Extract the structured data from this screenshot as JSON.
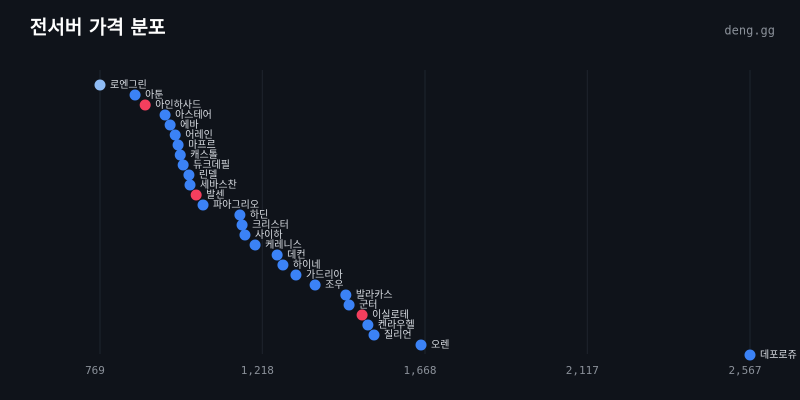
{
  "chart_data": {
    "type": "scatter",
    "title": "전서버 가격 분포",
    "brand": "deng.gg",
    "categories": [
      "로엔그린",
      "아툰",
      "아인하사드",
      "아스테어",
      "에바",
      "어레인",
      "마프르",
      "캐스톨",
      "듀크데필",
      "린델",
      "세바스찬",
      "발센",
      "파아그리오",
      "하딘",
      "크리스터",
      "사이하",
      "케레니스",
      "데컨",
      "하이네",
      "가드리아",
      "조우",
      "발라카스",
      "군터",
      "이실로테",
      "켄라우헬",
      "질리언",
      "오렌",
      "데포로쥬"
    ],
    "x": [
      769,
      866,
      894,
      949,
      963,
      977,
      985,
      991,
      999,
      1015,
      1018,
      1035,
      1054,
      1156,
      1162,
      1170,
      1198,
      1259,
      1275,
      1311,
      1364,
      1449,
      1458,
      1494,
      1510,
      1527,
      1657,
      2567
    ],
    "colors": [
      "#8fbcf5",
      "#3b82f6",
      "#f43f5e",
      "#3b82f6",
      "#3b82f6",
      "#3b82f6",
      "#3b82f6",
      "#3b82f6",
      "#3b82f6",
      "#3b82f6",
      "#3b82f6",
      "#f43f5e",
      "#3b82f6",
      "#3b82f6",
      "#3b82f6",
      "#3b82f6",
      "#3b82f6",
      "#3b82f6",
      "#3b82f6",
      "#3b82f6",
      "#3b82f6",
      "#3b82f6",
      "#3b82f6",
      "#f43f5e",
      "#3b82f6",
      "#3b82f6",
      "#3b82f6",
      "#3b82f6"
    ],
    "xlim": [
      769,
      2567
    ],
    "xticks": [
      769,
      {
        "value": 1218,
        "label": "1,218"
      },
      {
        "value": 1668,
        "label": "1,668"
      },
      {
        "value": 2117,
        "label": "2,117"
      },
      {
        "value": 2567,
        "label": "2,567"
      }
    ],
    "grid": true
  }
}
